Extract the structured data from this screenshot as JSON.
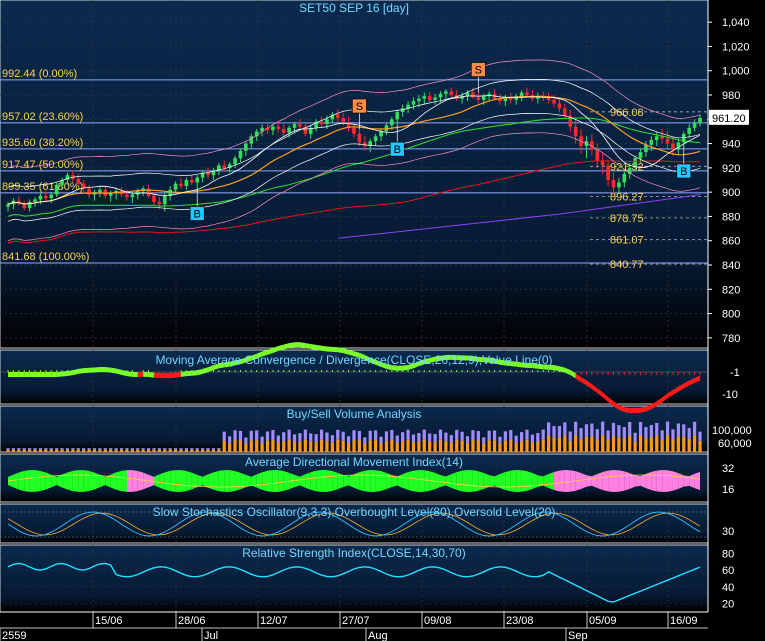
{
  "title": "SET50 SEP 16   [day]",
  "colors": {
    "background_top": "#0b2a4e",
    "background_bottom": "#000000",
    "grid": "#3a3a3a",
    "axis_text": "#ffd24a",
    "panel_title": "#74d7ff",
    "fib_line": "#8fa8ff",
    "candle_up": "#33e05a",
    "candle_down": "#ff2a2a",
    "buy_marker": "#22c8ff",
    "sell_marker": "#ff8a4a",
    "macd_pos": "#7aff2a",
    "macd_neg": "#ff1a1a",
    "volume_buy": "#a08cff",
    "volume_sell": "#ff9a1e",
    "adx_green": "#22ff22",
    "adx_pink": "#ff80e0",
    "stoch_k": "#30c0ff",
    "stoch_d": "#ffb030",
    "rsi": "#20e0ff",
    "ma_fast": "#ffa020",
    "ma_mid": "#30e030",
    "ma_slow": "#e01818",
    "ma_long": "#9040ff",
    "bollinger": "#ffffff",
    "envelope": "#ff90c0"
  },
  "price_panel": {
    "fib_labels": [
      {
        "label": "992.44 (0.00%)",
        "value": 992.44
      },
      {
        "label": "957.02 (23.60%)",
        "value": 957.02
      },
      {
        "label": "935.60 (38.20%)",
        "value": 935.6
      },
      {
        "label": "917.47 (50.00%)",
        "value": 917.47
      },
      {
        "label": "899.35 (61.80%)",
        "value": 899.35
      },
      {
        "label": "841.68 (100.00%)",
        "value": 841.68
      }
    ],
    "right_levels": [
      {
        "label": "966.08",
        "value": 966.08
      },
      {
        "label": "921.32",
        "value": 921.32
      },
      {
        "label": "896.27",
        "value": 896.27
      },
      {
        "label": "878.75",
        "value": 878.75
      },
      {
        "label": "861.07",
        "value": 861.07
      },
      {
        "label": "840.77",
        "value": 840.77
      }
    ],
    "last_price": "961.20",
    "y_ticks": [
      "1,040",
      "1,020",
      "1,000",
      "980",
      "960",
      "940",
      "920",
      "900",
      "880",
      "860",
      "840",
      "820",
      "800",
      "780"
    ],
    "signals": [
      {
        "type": "B",
        "index": 35
      },
      {
        "type": "S",
        "index": 65
      },
      {
        "type": "B",
        "index": 72
      },
      {
        "type": "S",
        "index": 87
      },
      {
        "type": "B",
        "index": 125
      }
    ]
  },
  "macd_panel": {
    "title": "Moving Average Convergence / Divergence(CLOSE,26,12,9),Value Line(0)",
    "y_ticks": [
      "-1",
      "-10"
    ]
  },
  "volume_panel": {
    "title": "Buy/Sell Volume Analysis",
    "y_ticks": [
      "100,000",
      "60,000"
    ]
  },
  "adx_panel": {
    "title": "Average Directional Movement Index(14)",
    "y_ticks": [
      "32",
      "16"
    ]
  },
  "stoch_panel": {
    "title": "Slow Stochastics Oscillator(9,3,3),Overbought Level(80),Oversold Level(20)",
    "y_ticks": [
      "30"
    ]
  },
  "rsi_panel": {
    "title": "Relative Strength Index(CLOSE,14,30,70)",
    "y_ticks": [
      "80",
      "60",
      "40",
      "20"
    ]
  },
  "x_axis": {
    "date_labels": [
      "15/06",
      "28/06",
      "12/07",
      "27/07",
      "09/08",
      "23/08",
      "05/09",
      "16/09"
    ],
    "month_labels": [
      "2559",
      "Jul",
      "Aug",
      "Sep"
    ]
  },
  "chart_data": {
    "type": "candlestick",
    "title": "SET50 SEP 16   [day]",
    "ylim": [
      770,
      1050
    ],
    "candles_ohlc": [
      [
        888,
        892,
        884,
        890
      ],
      [
        890,
        895,
        886,
        893
      ],
      [
        893,
        897,
        889,
        891
      ],
      [
        891,
        893,
        885,
        887
      ],
      [
        887,
        894,
        884,
        892
      ],
      [
        892,
        896,
        888,
        894
      ],
      [
        894,
        899,
        890,
        897
      ],
      [
        897,
        901,
        893,
        895
      ],
      [
        895,
        900,
        891,
        898
      ],
      [
        898,
        908,
        896,
        906
      ],
      [
        906,
        912,
        903,
        910
      ],
      [
        910,
        916,
        906,
        914
      ],
      [
        914,
        918,
        908,
        911
      ],
      [
        911,
        915,
        905,
        907
      ],
      [
        907,
        910,
        900,
        903
      ],
      [
        903,
        906,
        895,
        898
      ],
      [
        898,
        902,
        893,
        900
      ],
      [
        900,
        904,
        896,
        902
      ],
      [
        902,
        905,
        895,
        897
      ],
      [
        897,
        901,
        892,
        899
      ],
      [
        899,
        903,
        894,
        901
      ],
      [
        901,
        904,
        896,
        898
      ],
      [
        898,
        902,
        893,
        896
      ],
      [
        896,
        900,
        891,
        898
      ],
      [
        898,
        903,
        894,
        901
      ],
      [
        901,
        905,
        897,
        903
      ],
      [
        903,
        906,
        895,
        897
      ],
      [
        897,
        900,
        889,
        892
      ],
      [
        892,
        896,
        886,
        890
      ],
      [
        890,
        900,
        884,
        897
      ],
      [
        897,
        905,
        893,
        902
      ],
      [
        902,
        909,
        899,
        907
      ],
      [
        907,
        912,
        903,
        905
      ],
      [
        905,
        912,
        902,
        910
      ],
      [
        910,
        914,
        906,
        908
      ],
      [
        908,
        914,
        903,
        912
      ],
      [
        912,
        918,
        908,
        916
      ],
      [
        916,
        920,
        911,
        914
      ],
      [
        914,
        920,
        910,
        918
      ],
      [
        918,
        924,
        914,
        922
      ],
      [
        922,
        926,
        917,
        920
      ],
      [
        920,
        925,
        916,
        923
      ],
      [
        923,
        930,
        920,
        928
      ],
      [
        928,
        936,
        925,
        934
      ],
      [
        934,
        942,
        930,
        940
      ],
      [
        940,
        948,
        936,
        946
      ],
      [
        946,
        952,
        942,
        950
      ],
      [
        950,
        956,
        946,
        953
      ],
      [
        953,
        957,
        948,
        951
      ],
      [
        951,
        956,
        947,
        954
      ],
      [
        954,
        958,
        949,
        952
      ],
      [
        952,
        956,
        946,
        949
      ],
      [
        949,
        955,
        945,
        953
      ],
      [
        953,
        958,
        949,
        956
      ],
      [
        956,
        960,
        951,
        954
      ],
      [
        954,
        957,
        946,
        948
      ],
      [
        948,
        955,
        944,
        953
      ],
      [
        953,
        960,
        950,
        958
      ],
      [
        958,
        962,
        953,
        956
      ],
      [
        956,
        963,
        952,
        960
      ],
      [
        960,
        966,
        957,
        964
      ],
      [
        964,
        968,
        958,
        961
      ],
      [
        961,
        965,
        955,
        958
      ],
      [
        958,
        962,
        950,
        953
      ],
      [
        953,
        957,
        945,
        948
      ],
      [
        948,
        952,
        938,
        941
      ],
      [
        941,
        946,
        934,
        938
      ],
      [
        938,
        944,
        933,
        942
      ],
      [
        942,
        948,
        938,
        946
      ],
      [
        946,
        952,
        942,
        950
      ],
      [
        950,
        957,
        947,
        955
      ],
      [
        955,
        962,
        951,
        960
      ],
      [
        960,
        968,
        956,
        966
      ],
      [
        966,
        972,
        962,
        969
      ],
      [
        969,
        975,
        965,
        972
      ],
      [
        972,
        978,
        968,
        975
      ],
      [
        975,
        980,
        970,
        977
      ],
      [
        977,
        982,
        972,
        979
      ],
      [
        979,
        983,
        974,
        976
      ],
      [
        976,
        981,
        972,
        978
      ],
      [
        978,
        983,
        974,
        981
      ],
      [
        981,
        985,
        977,
        983
      ],
      [
        983,
        986,
        978,
        980
      ],
      [
        980,
        984,
        975,
        977
      ],
      [
        977,
        982,
        973,
        979
      ],
      [
        979,
        984,
        975,
        982
      ],
      [
        982,
        986,
        977,
        978
      ],
      [
        978,
        982,
        973,
        976
      ],
      [
        976,
        981,
        972,
        979
      ],
      [
        979,
        983,
        975,
        981
      ],
      [
        981,
        985,
        976,
        977
      ],
      [
        977,
        981,
        972,
        975
      ],
      [
        975,
        980,
        971,
        978
      ],
      [
        978,
        982,
        973,
        976
      ],
      [
        976,
        981,
        972,
        979
      ],
      [
        979,
        984,
        975,
        982
      ],
      [
        982,
        986,
        978,
        980
      ],
      [
        980,
        984,
        975,
        977
      ],
      [
        977,
        982,
        973,
        979
      ],
      [
        979,
        983,
        975,
        978
      ],
      [
        978,
        982,
        973,
        976
      ],
      [
        976,
        980,
        970,
        973
      ],
      [
        973,
        977,
        966,
        969
      ],
      [
        969,
        973,
        960,
        963
      ],
      [
        963,
        968,
        950,
        954
      ],
      [
        954,
        960,
        940,
        946
      ],
      [
        946,
        952,
        932,
        938
      ],
      [
        938,
        946,
        928,
        942
      ],
      [
        942,
        948,
        930,
        935
      ],
      [
        935,
        940,
        920,
        926
      ],
      [
        926,
        932,
        915,
        922
      ],
      [
        922,
        926,
        905,
        910
      ],
      [
        910,
        916,
        898,
        904
      ],
      [
        904,
        912,
        899,
        908
      ],
      [
        908,
        918,
        904,
        915
      ],
      [
        915,
        924,
        911,
        920
      ],
      [
        920,
        930,
        917,
        928
      ],
      [
        928,
        936,
        924,
        933
      ],
      [
        933,
        942,
        929,
        939
      ],
      [
        939,
        946,
        934,
        943
      ],
      [
        943,
        950,
        938,
        946
      ],
      [
        946,
        952,
        940,
        944
      ],
      [
        944,
        950,
        936,
        940
      ],
      [
        940,
        946,
        930,
        935
      ],
      [
        935,
        944,
        931,
        941
      ],
      [
        941,
        950,
        938,
        948
      ],
      [
        948,
        956,
        944,
        953
      ],
      [
        953,
        960,
        950,
        957
      ],
      [
        957,
        964,
        954,
        961
      ]
    ],
    "fib_levels": [
      992.44,
      957.02,
      935.6,
      917.47,
      899.35,
      841.68
    ],
    "support_resistance": [
      966.08,
      921.32,
      896.27,
      878.75,
      861.07,
      840.77
    ],
    "last_close": 961.2,
    "x_tick_labels": [
      "15/06",
      "28/06",
      "12/07",
      "27/07",
      "09/08",
      "23/08",
      "05/09",
      "16/09"
    ]
  }
}
